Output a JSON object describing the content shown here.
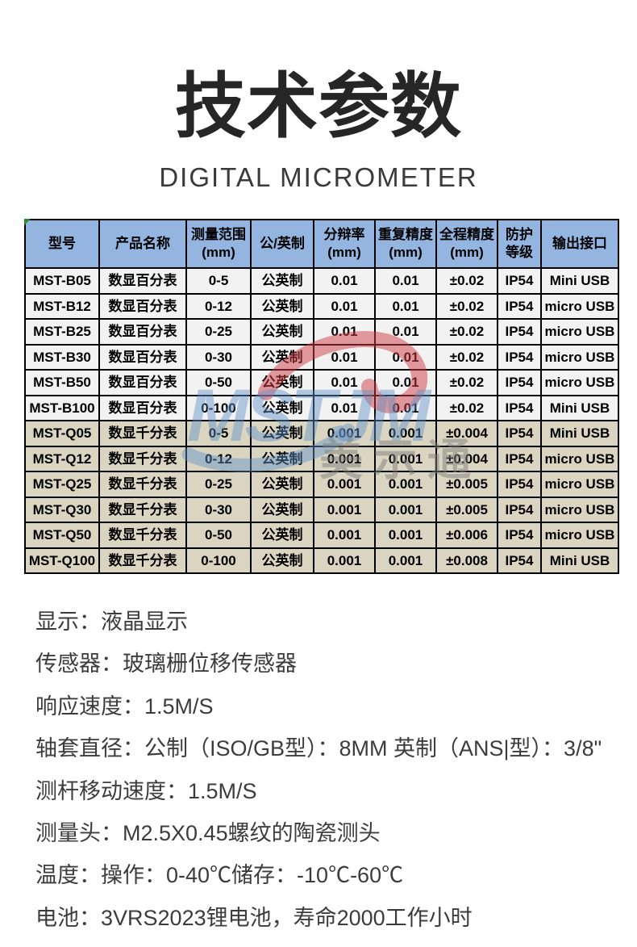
{
  "header": {
    "title": "技术参数",
    "subtitle": "DIGITAL MICROMETER"
  },
  "watermark": {
    "logo": "MSTJM",
    "cn": "美示通"
  },
  "colors": {
    "header_bg": "#93b5df",
    "row_b_bg": "#f2f2f2",
    "row_q_bg": "#dad5c1",
    "highlight_bg": "#ffff00",
    "corner_green": "#2e8b2e",
    "watermark_blue": "rgba(95,145,200,0.45)",
    "watermark_red": "rgba(205,60,70,0.5)",
    "watermark_gray": "rgba(125,125,125,0.5)"
  },
  "table": {
    "columns": [
      {
        "key": "model",
        "label": "型号"
      },
      {
        "key": "product-name",
        "label": "产品名称"
      },
      {
        "key": "range",
        "label": "测量范围\n(mm)"
      },
      {
        "key": "unit-system",
        "label": "公/英制"
      },
      {
        "key": "resolution",
        "label": "分辩率\n(mm)"
      },
      {
        "key": "repeatability",
        "label": "重复精度\n(mm)"
      },
      {
        "key": "accuracy",
        "label": "全程精度\n(mm)"
      },
      {
        "key": "ip-rating",
        "label": "防护\n等级"
      },
      {
        "key": "interface",
        "label": "输出接口"
      }
    ],
    "rows": [
      {
        "group": "b",
        "highlight": false,
        "cells": [
          "MST-B05",
          "数显百分表",
          "0-5",
          "公英制",
          "0.01",
          "0.01",
          "±0.02",
          "IP54",
          "Mini USB"
        ]
      },
      {
        "group": "b",
        "highlight": true,
        "cells": [
          "MST-B12",
          "数显百分表",
          "0-12",
          "公英制",
          "0.01",
          "0.01",
          "±0.02",
          "IP54",
          "micro USB"
        ]
      },
      {
        "group": "b",
        "highlight": true,
        "cells": [
          "MST-B25",
          "数显百分表",
          "0-25",
          "公英制",
          "0.01",
          "0.01",
          "±0.02",
          "IP54",
          "micro USB"
        ]
      },
      {
        "group": "b",
        "highlight": true,
        "cells": [
          "MST-B30",
          "数显百分表",
          "0-30",
          "公英制",
          "0.01",
          "0.01",
          "±0.02",
          "IP54",
          "micro USB"
        ]
      },
      {
        "group": "b",
        "highlight": true,
        "cells": [
          "MST-B50",
          "数显百分表",
          "0-50",
          "公英制",
          "0.01",
          "0.01",
          "±0.02",
          "IP54",
          "micro USB"
        ]
      },
      {
        "group": "b",
        "highlight": false,
        "cells": [
          "MST-B100",
          "数显百分表",
          "0-100",
          "公英制",
          "0.01",
          "0.01",
          "±0.02",
          "IP54",
          "Mini USB"
        ]
      },
      {
        "group": "q",
        "highlight": false,
        "cells": [
          "MST-Q05",
          "数显千分表",
          "0-5",
          "公英制",
          "0.001",
          "0.001",
          "±0.004",
          "IP54",
          "Mini USB"
        ]
      },
      {
        "group": "q",
        "highlight": true,
        "cells": [
          "MST-Q12",
          "数显千分表",
          "0-12",
          "公英制",
          "0.001",
          "0.001",
          "±0.004",
          "IP54",
          "micro USB"
        ]
      },
      {
        "group": "q",
        "highlight": true,
        "cells": [
          "MST-Q25",
          "数显千分表",
          "0-25",
          "公英制",
          "0.001",
          "0.001",
          "±0.005",
          "IP54",
          "micro USB"
        ]
      },
      {
        "group": "q",
        "highlight": true,
        "cells": [
          "MST-Q30",
          "数显千分表",
          "0-30",
          "公英制",
          "0.001",
          "0.001",
          "±0.005",
          "IP54",
          "micro USB"
        ]
      },
      {
        "group": "q",
        "highlight": true,
        "cells": [
          "MST-Q50",
          "数显千分表",
          "0-50",
          "公英制",
          "0.001",
          "0.001",
          "±0.006",
          "IP54",
          "micro USB"
        ]
      },
      {
        "group": "q",
        "highlight": false,
        "cells": [
          "MST-Q100",
          "数显千分表",
          "0-100",
          "公英制",
          "0.001",
          "0.001",
          "±0.008",
          "IP54",
          "Mini USB"
        ]
      }
    ]
  },
  "specs": {
    "lines": [
      "显示：液晶显示",
      "传感器：玻璃栅位移传感器",
      "响应速度：1.5M/S",
      "轴套直径：公制（ISO/GB型）：8MM 英制（ANS|型）：3/8\"",
      "测杆移动速度：1.5M/S",
      "测量头：M2.5X0.45螺纹的陶瓷测头",
      "温度：操作：0-40℃储存：-10℃-60℃",
      "电池：3VRS2023锂电池，寿命2000工作小时"
    ]
  }
}
